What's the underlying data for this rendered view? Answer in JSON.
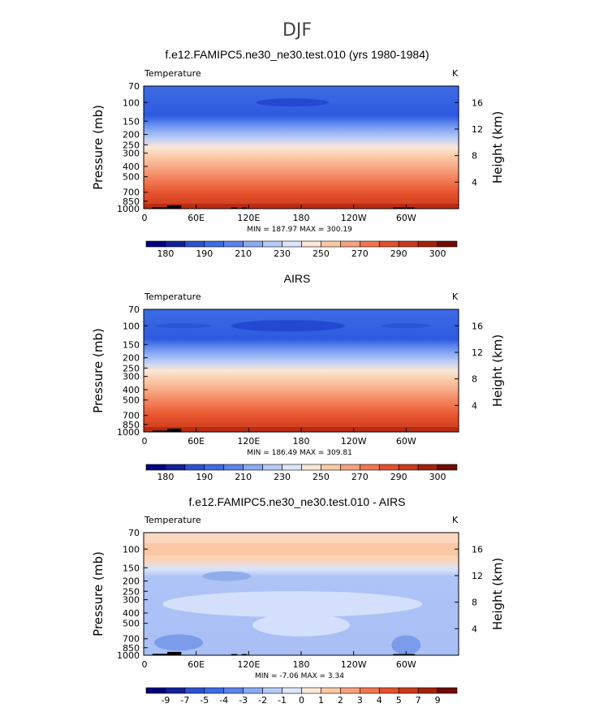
{
  "figure": {
    "title": "DJF"
  },
  "chart_data": [
    {
      "type": "heatmap",
      "title": "f.e12.FAMIPC5.ne30_ne30.test.010 (yrs 1980-1984)",
      "variable_label": "Temperature",
      "units": "K",
      "ylabel": "Pressure (mb)",
      "ylabel_right": "Height (km)",
      "y_ticks": [
        "70",
        "100",
        "150",
        "200",
        "250",
        "300",
        "400",
        "500",
        "700",
        "850",
        "1000"
      ],
      "y_tick_values": [
        70,
        100,
        150,
        200,
        250,
        300,
        400,
        500,
        700,
        850,
        1000
      ],
      "height_ticks": [
        "16",
        "12",
        "8",
        "4"
      ],
      "height_tick_values": [
        16,
        12,
        8,
        4
      ],
      "x_ticks": [
        "0",
        "60E",
        "120E",
        "180",
        "120W",
        "60W"
      ],
      "x_tick_values": [
        0,
        60,
        120,
        180,
        240,
        300
      ],
      "xlim": [
        0,
        360
      ],
      "ylim": [
        1000,
        70
      ],
      "stats": "MIN = 187.97   MAX = 300.19",
      "colorbar_labels": [
        "180",
        "190",
        "210",
        "230",
        "250",
        "270",
        "290",
        "300"
      ],
      "colorbar_colors": [
        "#00007f",
        "#12219a",
        "#2d52d0",
        "#3e6ce4",
        "#5a84ec",
        "#8aaaf3",
        "#b7cbf8",
        "#dbe6fb",
        "#fae7d6",
        "#fbc8a5",
        "#f6a17d",
        "#f1764f",
        "#e5512c",
        "#cb3a1b",
        "#a32109",
        "#700b00"
      ]
    },
    {
      "type": "heatmap",
      "title": "AIRS",
      "variable_label": "Temperature",
      "units": "K",
      "ylabel": "Pressure (mb)",
      "ylabel_right": "Height (km)",
      "y_ticks": [
        "70",
        "100",
        "150",
        "200",
        "250",
        "300",
        "400",
        "500",
        "700",
        "850",
        "1000"
      ],
      "y_tick_values": [
        70,
        100,
        150,
        200,
        250,
        300,
        400,
        500,
        700,
        850,
        1000
      ],
      "height_ticks": [
        "16",
        "12",
        "8",
        "4"
      ],
      "height_tick_values": [
        16,
        12,
        8,
        4
      ],
      "x_ticks": [
        "0",
        "60E",
        "120E",
        "180",
        "120W",
        "60W"
      ],
      "x_tick_values": [
        0,
        60,
        120,
        180,
        240,
        300
      ],
      "xlim": [
        0,
        360
      ],
      "ylim": [
        1000,
        70
      ],
      "stats": "MIN = 186.49   MAX = 309.81",
      "colorbar_labels": [
        "180",
        "190",
        "210",
        "230",
        "250",
        "270",
        "290",
        "300"
      ],
      "colorbar_colors": [
        "#00007f",
        "#12219a",
        "#2d52d0",
        "#3e6ce4",
        "#5a84ec",
        "#8aaaf3",
        "#b7cbf8",
        "#dbe6fb",
        "#fae7d6",
        "#fbc8a5",
        "#f6a17d",
        "#f1764f",
        "#e5512c",
        "#cb3a1b",
        "#a32109",
        "#700b00"
      ]
    },
    {
      "type": "heatmap",
      "title": "f.e12.FAMIPC5.ne30_ne30.test.010 - AIRS",
      "variable_label": "Temperature",
      "units": "K",
      "ylabel": "Pressure (mb)",
      "ylabel_right": "Height (km)",
      "y_ticks": [
        "70",
        "100",
        "150",
        "200",
        "250",
        "300",
        "400",
        "500",
        "700",
        "850",
        "1000"
      ],
      "y_tick_values": [
        70,
        100,
        150,
        200,
        250,
        300,
        400,
        500,
        700,
        850,
        1000
      ],
      "height_ticks": [
        "16",
        "12",
        "8",
        "4"
      ],
      "height_tick_values": [
        16,
        12,
        8,
        4
      ],
      "x_ticks": [
        "0",
        "60E",
        "120E",
        "180",
        "120W",
        "60W"
      ],
      "x_tick_values": [
        0,
        60,
        120,
        180,
        240,
        300
      ],
      "xlim": [
        0,
        360
      ],
      "ylim": [
        1000,
        70
      ],
      "stats": "MIN =  -7.06   MAX =   3.34",
      "colorbar_labels": [
        "-9",
        "-7",
        "-5",
        "-4",
        "-3",
        "-2",
        "-1",
        "0",
        "1",
        "2",
        "3",
        "4",
        "5",
        "7",
        "9"
      ],
      "colorbar_colors": [
        "#00007f",
        "#12219a",
        "#2d52d0",
        "#3e6ce4",
        "#5a84ec",
        "#8aaaf3",
        "#b7cbf8",
        "#dbe6fb",
        "#fae7d6",
        "#fbc8a5",
        "#f6a17d",
        "#f1764f",
        "#e5512c",
        "#cb3a1b",
        "#a32109",
        "#700b00"
      ]
    }
  ]
}
